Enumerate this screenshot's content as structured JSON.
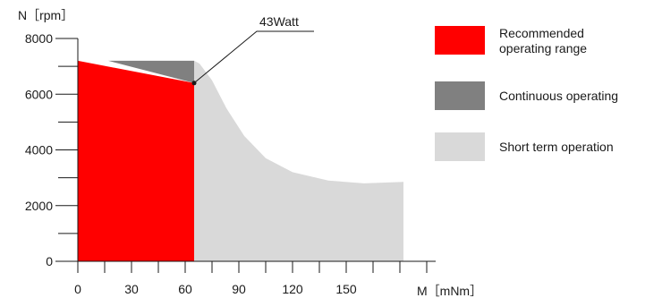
{
  "chart_data": {
    "type": "area",
    "ylabel": "N［rpm］",
    "xlabel": "M［mNm］",
    "x_ticks": [
      0,
      30,
      60,
      90,
      120,
      150
    ],
    "y_ticks": [
      0,
      2000,
      4000,
      6000,
      8000
    ],
    "xlim": [
      0,
      200
    ],
    "ylim": [
      0,
      8000
    ],
    "annotation": {
      "text": "43Watt",
      "point": [
        65,
        6400
      ]
    },
    "regions": [
      {
        "name": "Recommended operating range",
        "color": "#ff0000",
        "points": [
          [
            0,
            0
          ],
          [
            65,
            0
          ],
          [
            65,
            6400
          ],
          [
            0,
            7200
          ]
        ]
      },
      {
        "name": "Continuous operating",
        "color": "#808080",
        "points": [
          [
            17,
            7200
          ],
          [
            65,
            7200
          ],
          [
            65,
            6400
          ]
        ]
      },
      {
        "name": "Short term operation",
        "color": "#d9d9d9",
        "points": [
          [
            65,
            0
          ],
          [
            182,
            0
          ],
          [
            182,
            2850
          ],
          [
            160,
            2800
          ],
          [
            140,
            2900
          ],
          [
            120,
            3200
          ],
          [
            105,
            3700
          ],
          [
            93,
            4500
          ],
          [
            83,
            5500
          ],
          [
            75,
            6500
          ],
          [
            68,
            7100
          ],
          [
            65,
            7200
          ]
        ]
      }
    ]
  },
  "legend": [
    {
      "label": "Recommended\noperating range",
      "color": "#ff0000"
    },
    {
      "label": "Continuous operating",
      "color": "#808080"
    },
    {
      "label": "Short term operation",
      "color": "#d9d9d9"
    }
  ]
}
